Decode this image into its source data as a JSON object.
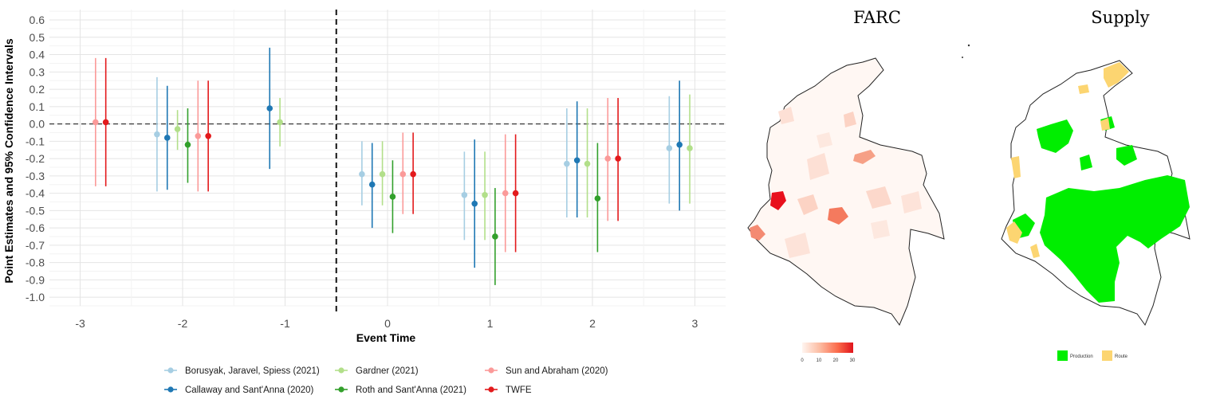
{
  "chart_data": [
    {
      "type": "scatter",
      "title": "",
      "xlabel": "Event Time",
      "ylabel": "Point Estimates and 95% Confidence Intervals",
      "xlim": [
        -3.3,
        3.3
      ],
      "ylim": [
        -1.05,
        0.66
      ],
      "x_ticks": [
        -3,
        -2,
        -1,
        0,
        1,
        2,
        3
      ],
      "x_tick_labels": [
        "-3",
        "-2",
        "-1",
        "0",
        "1",
        "2",
        "3"
      ],
      "y_ticks": [
        0.6,
        0.5,
        0.4,
        0.3,
        0.2,
        0.1,
        0.0,
        -0.1,
        -0.2,
        -0.3,
        -0.4,
        -0.5,
        -0.6,
        -0.7,
        -0.8,
        -0.9,
        -1.0
      ],
      "y_tick_labels": [
        "0.6",
        "0.5",
        "0.4",
        "0.3",
        "0.2",
        "0.1",
        "0.0",
        "-0.1",
        "-0.2",
        "-0.3",
        "-0.4",
        "-0.5",
        "-0.6",
        "-0.7",
        "-0.8",
        "-0.9",
        "-1.0"
      ],
      "grid": true,
      "legend_position": "bottom",
      "treatment_line_x": -0.5,
      "zero_line_y": 0,
      "series": [
        {
          "name": "Borusyak, Jaravel, Spiess (2021)",
          "color": "#a6cee3",
          "x_offset": -0.25,
          "points": [
            {
              "x": -2,
              "y": -0.06,
              "lo": -0.39,
              "hi": 0.27
            },
            {
              "x": 0,
              "y": -0.29,
              "lo": -0.47,
              "hi": -0.1
            },
            {
              "x": 1,
              "y": -0.41,
              "lo": -0.67,
              "hi": -0.16
            },
            {
              "x": 2,
              "y": -0.23,
              "lo": -0.54,
              "hi": 0.09
            },
            {
              "x": 3,
              "y": -0.14,
              "lo": -0.46,
              "hi": 0.16
            }
          ]
        },
        {
          "name": "Callaway and Sant'Anna (2020)",
          "color": "#1f78b4",
          "x_offset": -0.15,
          "points": [
            {
              "x": -2,
              "y": -0.08,
              "lo": -0.38,
              "hi": 0.22
            },
            {
              "x": -1,
              "y": 0.09,
              "lo": -0.26,
              "hi": 0.44
            },
            {
              "x": 0,
              "y": -0.35,
              "lo": -0.6,
              "hi": -0.11
            },
            {
              "x": 1,
              "y": -0.46,
              "lo": -0.83,
              "hi": -0.09
            },
            {
              "x": 2,
              "y": -0.21,
              "lo": -0.54,
              "hi": 0.13
            },
            {
              "x": 3,
              "y": -0.12,
              "lo": -0.5,
              "hi": 0.25
            }
          ]
        },
        {
          "name": "Gardner (2021)",
          "color": "#b2df8a",
          "x_offset": -0.05,
          "points": [
            {
              "x": -2,
              "y": -0.03,
              "lo": -0.15,
              "hi": 0.08
            },
            {
              "x": -1,
              "y": 0.01,
              "lo": -0.13,
              "hi": 0.15
            },
            {
              "x": 0,
              "y": -0.29,
              "lo": -0.47,
              "hi": -0.1
            },
            {
              "x": 1,
              "y": -0.41,
              "lo": -0.67,
              "hi": -0.16
            },
            {
              "x": 2,
              "y": -0.23,
              "lo": -0.54,
              "hi": 0.09
            },
            {
              "x": 3,
              "y": -0.14,
              "lo": -0.46,
              "hi": 0.17
            }
          ]
        },
        {
          "name": "Roth and Sant'Anna (2021)",
          "color": "#33a02c",
          "x_offset": 0.05,
          "points": [
            {
              "x": -2,
              "y": -0.12,
              "lo": -0.34,
              "hi": 0.09
            },
            {
              "x": 0,
              "y": -0.42,
              "lo": -0.63,
              "hi": -0.21
            },
            {
              "x": 1,
              "y": -0.65,
              "lo": -0.93,
              "hi": -0.37
            },
            {
              "x": 2,
              "y": -0.43,
              "lo": -0.74,
              "hi": -0.11
            }
          ]
        },
        {
          "name": "Sun and Abraham (2020)",
          "color": "#fb9a99",
          "x_offset": 0.15,
          "points": [
            {
              "x": -3,
              "y": 0.01,
              "lo": -0.36,
              "hi": 0.38
            },
            {
              "x": -2,
              "y": -0.07,
              "lo": -0.39,
              "hi": 0.25
            },
            {
              "x": 0,
              "y": -0.29,
              "lo": -0.52,
              "hi": -0.05
            },
            {
              "x": 1,
              "y": -0.4,
              "lo": -0.74,
              "hi": -0.06
            },
            {
              "x": 2,
              "y": -0.2,
              "lo": -0.56,
              "hi": 0.15
            }
          ]
        },
        {
          "name": "TWFE",
          "color": "#e31a1c",
          "x_offset": 0.25,
          "points": [
            {
              "x": -3,
              "y": 0.01,
              "lo": -0.36,
              "hi": 0.38
            },
            {
              "x": -2,
              "y": -0.07,
              "lo": -0.39,
              "hi": 0.25
            },
            {
              "x": 0,
              "y": -0.29,
              "lo": -0.52,
              "hi": -0.05
            },
            {
              "x": 1,
              "y": -0.4,
              "lo": -0.74,
              "hi": -0.06
            },
            {
              "x": 2,
              "y": -0.2,
              "lo": -0.56,
              "hi": 0.15
            }
          ]
        }
      ]
    },
    {
      "type": "map",
      "title": "FARC",
      "legend": {
        "type": "colorbar",
        "tick_labels": [
          "0",
          "10",
          "20",
          "30"
        ],
        "colors": [
          "#fff5f0",
          "#fc9272",
          "#ef3b2c",
          "#cb181d"
        ]
      }
    },
    {
      "type": "map",
      "title": "Supply",
      "legend": {
        "type": "categorical",
        "items": [
          {
            "label": "Production",
            "color": "#00ee00"
          },
          {
            "label": "Route",
            "color": "#fcd571"
          }
        ]
      }
    }
  ]
}
